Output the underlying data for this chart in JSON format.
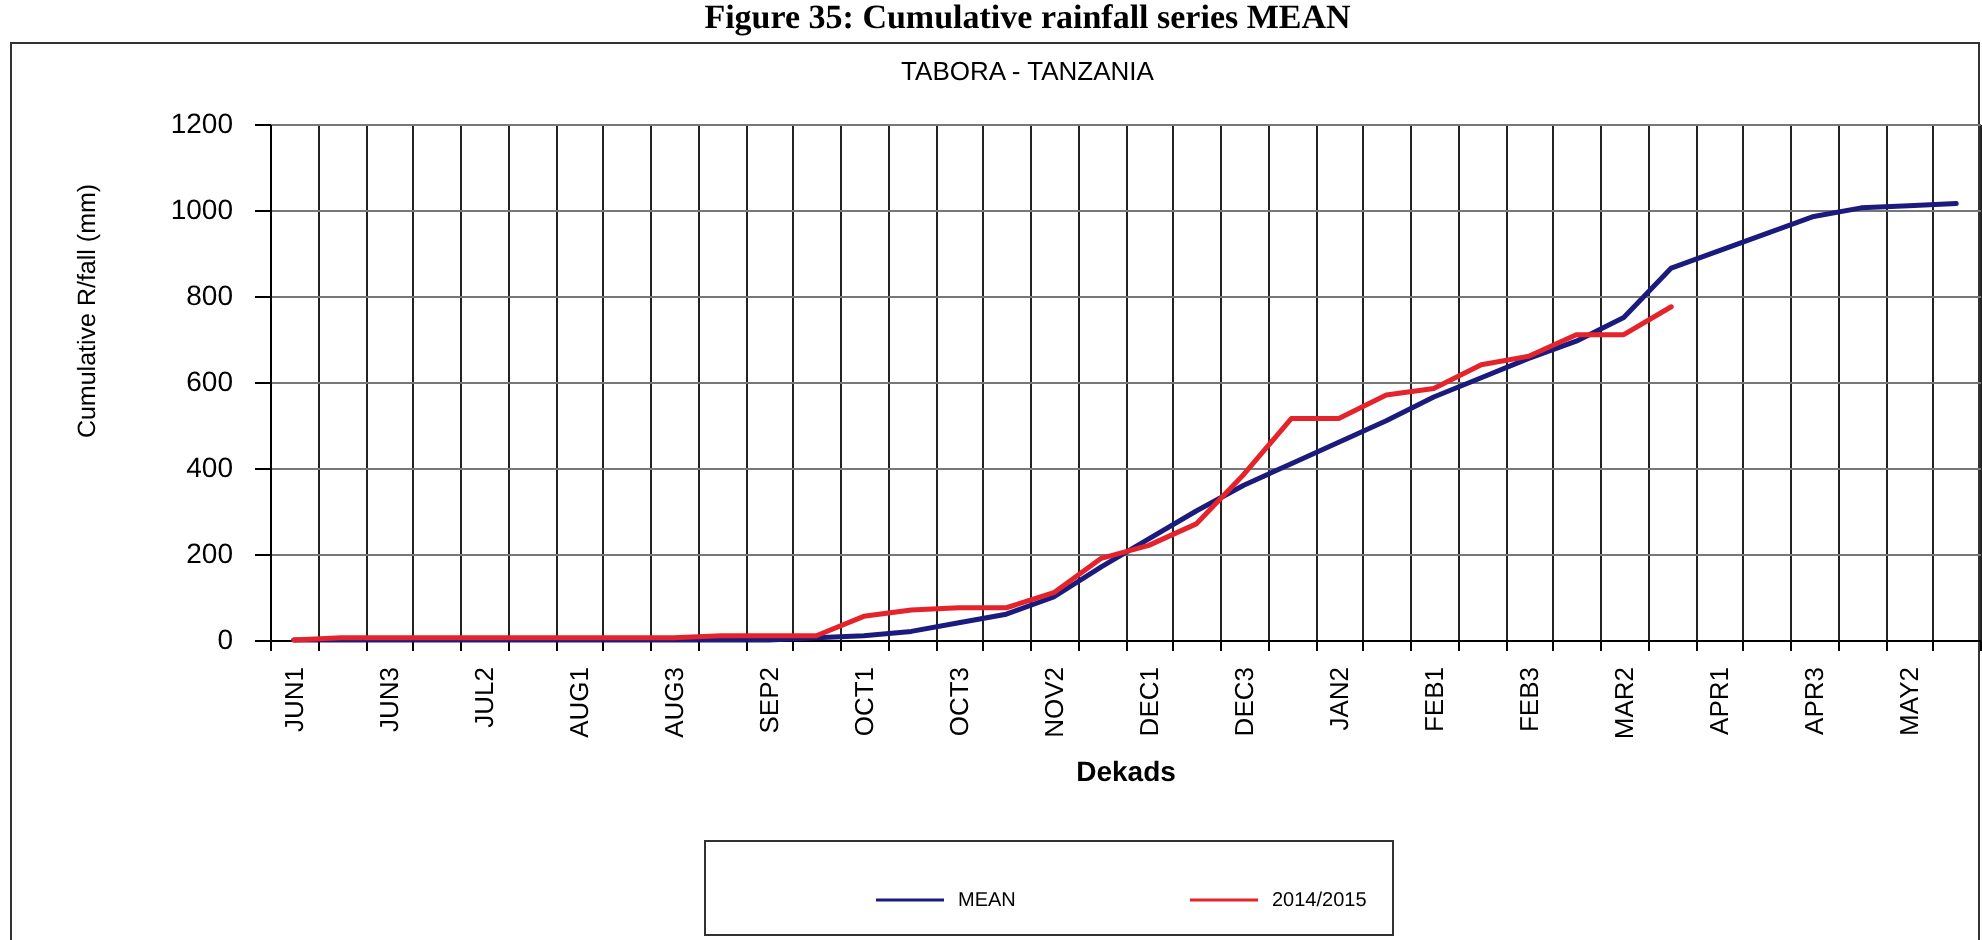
{
  "chart_data": {
    "type": "line",
    "title": "Figure 35: Cumulative rainfall series MEAN",
    "subtitle": "TABORA - TANZANIA",
    "xlabel": "Dekads",
    "ylabel": "Cumulative R/fall (mm)",
    "categories": [
      "JUN1",
      null,
      "JUN3",
      null,
      "JUL2",
      null,
      "AUG1",
      null,
      "AUG3",
      null,
      "SEP2",
      null,
      "OCT1",
      null,
      "OCT3",
      null,
      "NOV2",
      null,
      "DEC1",
      null,
      "DEC3",
      null,
      "JAN2",
      null,
      "FEB1",
      null,
      "FEB3",
      null,
      "MAR2",
      null,
      "APR1",
      null,
      "APR3",
      null,
      "MAY2",
      null
    ],
    "series": [
      {
        "name": "MEAN",
        "color": "#1b1b7e",
        "values": [
          0,
          0,
          0,
          0,
          0,
          0,
          0,
          0,
          0,
          0,
          0,
          5,
          10,
          20,
          40,
          60,
          100,
          170,
          235,
          300,
          360,
          410,
          460,
          510,
          565,
          610,
          655,
          695,
          750,
          865,
          905,
          945,
          985,
          1005,
          1010,
          1015
        ]
      },
      {
        "name": "2014/2015",
        "color": "#e5232b",
        "values": [
          0,
          5,
          5,
          5,
          5,
          5,
          5,
          5,
          5,
          10,
          10,
          10,
          55,
          70,
          75,
          75,
          110,
          190,
          220,
          270,
          385,
          515,
          515,
          570,
          585,
          640,
          660,
          710,
          710,
          775,
          null,
          null,
          null,
          null,
          null,
          null
        ]
      }
    ],
    "ylim": [
      0,
      1200
    ],
    "yticks": [
      0,
      200,
      400,
      600,
      800,
      1000,
      1200
    ],
    "grid": true,
    "legend": "bottom"
  }
}
